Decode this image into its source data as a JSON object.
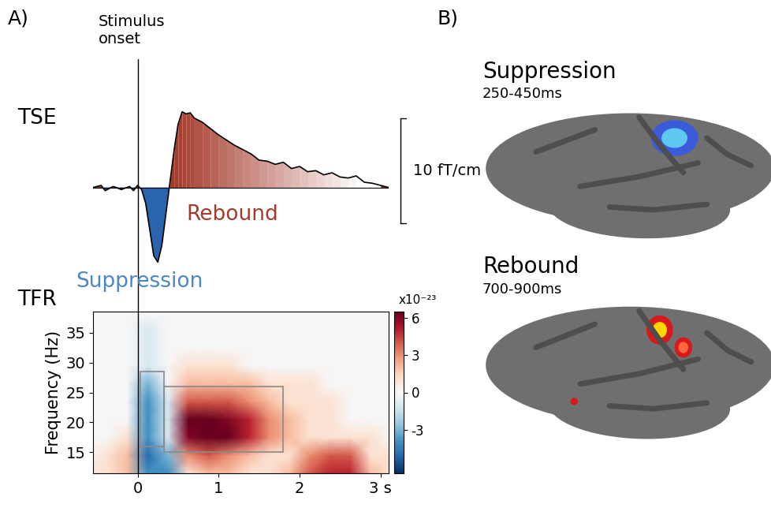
{
  "panel_labels": [
    "A)",
    "B)"
  ],
  "chart_data": [
    {
      "type": "line",
      "title": "TSE",
      "color": "#000000",
      "tick_labels": false,
      "xlim": [
        -0.55,
        3.1
      ],
      "ylim": [
        -11.8,
        12.2
      ],
      "x": [
        -0.55,
        -0.45,
        -0.4,
        -0.3,
        -0.2,
        -0.1,
        -0.05,
        0,
        0.05,
        0.1,
        0.15,
        0.2,
        0.25,
        0.3,
        0.35,
        0.4,
        0.45,
        0.5,
        0.55,
        0.6,
        0.65,
        0.7,
        0.8,
        0.9,
        1.0,
        1.1,
        1.2,
        1.3,
        1.4,
        1.5,
        1.6,
        1.7,
        1.8,
        1.9,
        2.0,
        2.1,
        2.2,
        2.3,
        2.4,
        2.5,
        2.6,
        2.7,
        2.8,
        2.9,
        3.0,
        3.1
      ],
      "values": [
        0,
        0.2,
        -0.3,
        0.1,
        -0.2,
        0.1,
        -0.3,
        0.2,
        -0.2,
        -1.5,
        -4,
        -6.5,
        -7.1,
        -5.5,
        -2.5,
        0.5,
        3.5,
        6,
        7.2,
        7.0,
        7.1,
        6.6,
        6.2,
        5.6,
        5.0,
        4.5,
        4.0,
        3.6,
        3.2,
        2.6,
        2.5,
        2.2,
        2.4,
        1.8,
        2.0,
        1.5,
        1.6,
        1.2,
        1.4,
        1.0,
        0.9,
        1.1,
        0.5,
        0.4,
        0.2,
        0.0
      ],
      "stimulus_onset": {
        "x": 0,
        "label": "Stimulus\nonset"
      },
      "annotations": {
        "suppression": "Suppression",
        "rebound": "Rebound"
      },
      "scale_bar": {
        "value": 10,
        "label": "10 fT/cm"
      }
    },
    {
      "type": "heatmap",
      "title": "TFR",
      "y_label": "Frequency (Hz)",
      "xlim": [
        -0.55,
        3.1
      ],
      "xticks": [
        0,
        1,
        2,
        {
          "value": 3,
          "label": "3 s"
        }
      ],
      "ylim": [
        11.5,
        38.5
      ],
      "yticks": [
        15,
        20,
        25,
        30,
        35
      ],
      "time_edges": [
        -0.75,
        -0.5,
        -0.25,
        0,
        0.25,
        0.5,
        0.75,
        1.0,
        1.25,
        1.5,
        1.75,
        2.0,
        2.25,
        2.5,
        2.75,
        3.0,
        3.25
      ],
      "freq_edges": [
        10,
        13,
        16,
        19,
        22,
        25,
        28,
        31,
        34,
        37,
        40
      ],
      "cells": [
        [
          1,
          1,
          2,
          -4,
          -4,
          1,
          2,
          2,
          1,
          1,
          2,
          4,
          5,
          5,
          2,
          1
        ],
        [
          0,
          1,
          2,
          -5,
          -3,
          3,
          4,
          3,
          2,
          1,
          1,
          3,
          4,
          4,
          1,
          1
        ],
        [
          0,
          0,
          1,
          -4,
          -1,
          6,
          7,
          7,
          5,
          3,
          2,
          1,
          1,
          1,
          1,
          0
        ],
        [
          0,
          0,
          0,
          -4,
          -1,
          7,
          7,
          6,
          5,
          3,
          2,
          1,
          1,
          0,
          0,
          0
        ],
        [
          0,
          0,
          0,
          -4,
          -1,
          4,
          4,
          4,
          3,
          2,
          1,
          1,
          1,
          0,
          0,
          0
        ],
        [
          0,
          0,
          0,
          -3,
          0,
          2,
          2,
          2,
          2,
          1,
          1,
          1,
          0,
          0,
          0,
          0
        ],
        [
          0,
          0,
          0,
          -1,
          0,
          1,
          1,
          1,
          0,
          0,
          0,
          0,
          0,
          0,
          0,
          0
        ],
        [
          0,
          0,
          0,
          -1,
          0,
          0,
          0,
          0,
          0,
          0,
          0,
          0,
          0,
          0,
          0,
          0
        ],
        [
          0,
          0,
          0,
          -1,
          0,
          0,
          0,
          0,
          0,
          0,
          0,
          0,
          0,
          0,
          0,
          0
        ],
        [
          0,
          0,
          0,
          0,
          0,
          0,
          0,
          0,
          0,
          0,
          0,
          0,
          0,
          0,
          0,
          0
        ]
      ],
      "colorbar": {
        "range": [
          -6.5,
          6.5
        ],
        "ticks": [
          -3,
          0,
          3,
          6
        ],
        "label": "x10⁻²³"
      },
      "windows": [
        {
          "time": [
            0.03,
            0.33
          ],
          "frequency": [
            16,
            28.5
          ]
        },
        {
          "time": [
            0.33,
            1.8
          ],
          "frequency": [
            15,
            26
          ]
        }
      ]
    }
  ],
  "brain_maps": [
    {
      "title": "Suppression",
      "window": "250-450ms"
    },
    {
      "title": "Rebound",
      "window": "700-900ms"
    }
  ]
}
